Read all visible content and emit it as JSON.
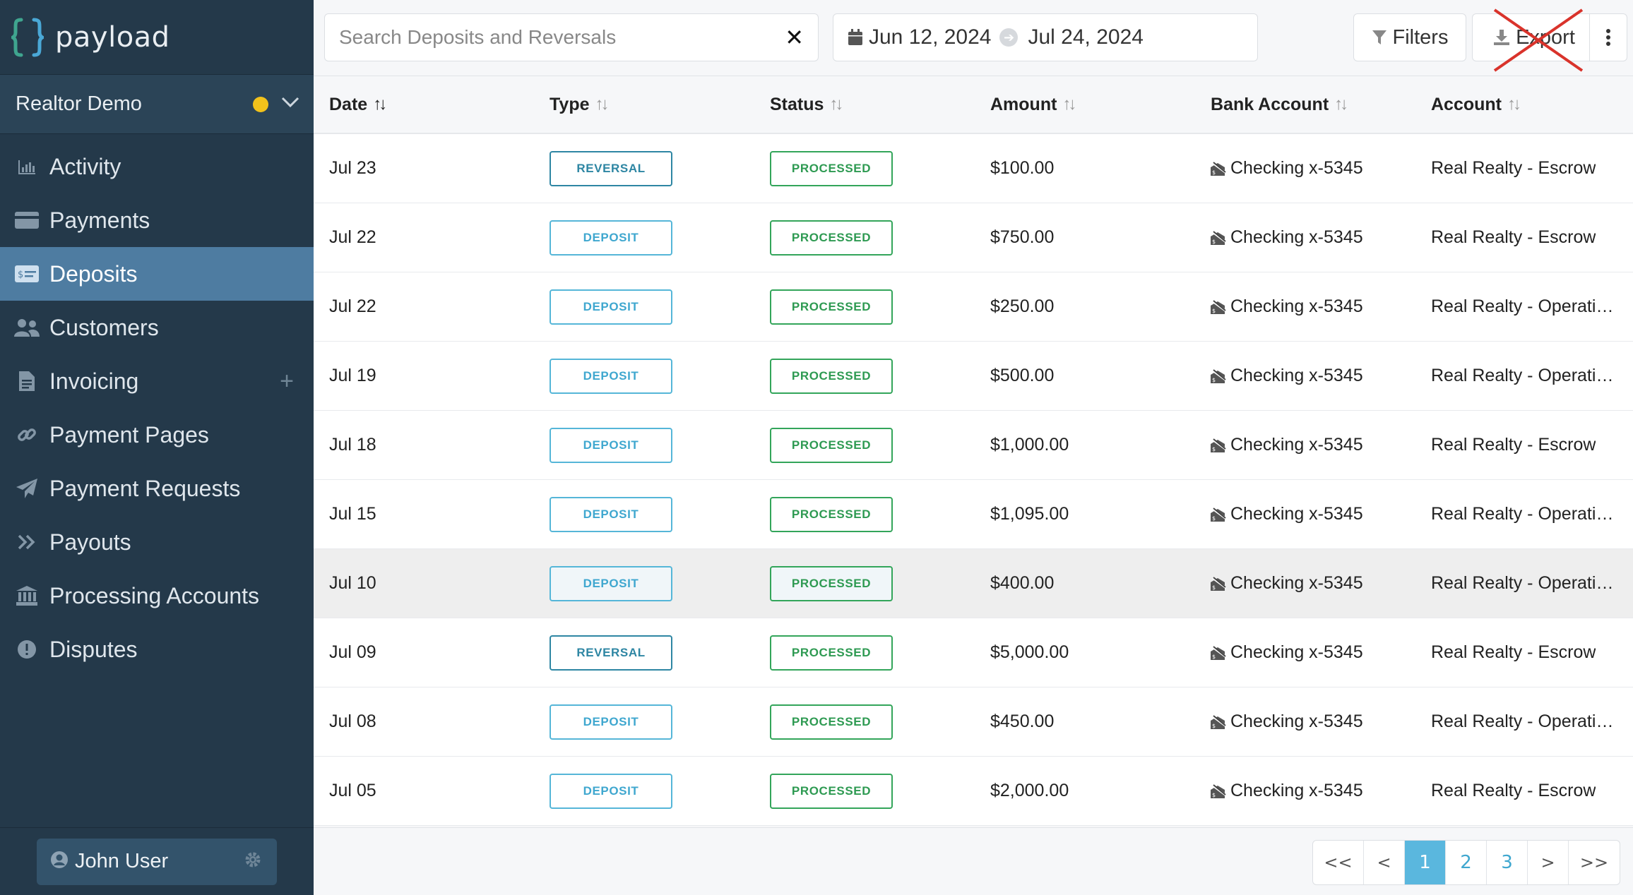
{
  "app": {
    "name": "payload"
  },
  "org": {
    "name": "Realtor Demo",
    "status_color": "#f2c21b"
  },
  "nav": [
    {
      "key": "activity",
      "label": "Activity",
      "icon": "bar-chart-icon"
    },
    {
      "key": "payments",
      "label": "Payments",
      "icon": "credit-card-icon"
    },
    {
      "key": "deposits",
      "label": "Deposits",
      "icon": "bank-note-icon",
      "active": true
    },
    {
      "key": "customers",
      "label": "Customers",
      "icon": "users-icon"
    },
    {
      "key": "invoicing",
      "label": "Invoicing",
      "icon": "document-icon",
      "has_plus": true
    },
    {
      "key": "payment-pages",
      "label": "Payment Pages",
      "icon": "link-icon"
    },
    {
      "key": "payment-requests",
      "label": "Payment Requests",
      "icon": "paper-plane-icon"
    },
    {
      "key": "payouts",
      "label": "Payouts",
      "icon": "double-chevron-icon"
    },
    {
      "key": "processing-accounts",
      "label": "Processing Accounts",
      "icon": "bank-building-icon"
    },
    {
      "key": "disputes",
      "label": "Disputes",
      "icon": "alert-icon"
    }
  ],
  "user": {
    "name": "John User"
  },
  "search": {
    "placeholder": "Search Deposits and Reversals",
    "value": ""
  },
  "daterange": {
    "start": "Jun 12, 2024",
    "end": "Jul 24, 2024"
  },
  "toolbar": {
    "filters_label": "Filters",
    "export_label": "Export"
  },
  "table": {
    "headers": {
      "date": "Date",
      "type": "Type",
      "status": "Status",
      "amount": "Amount",
      "bank": "Bank Account",
      "account": "Account"
    },
    "rows": [
      {
        "date": "Jul 23",
        "type": "REVERSAL",
        "status": "PROCESSED",
        "amount": "$100.00",
        "bank": "Checking x-5345",
        "account": "Real Realty - Escrow"
      },
      {
        "date": "Jul 22",
        "type": "DEPOSIT",
        "status": "PROCESSED",
        "amount": "$750.00",
        "bank": "Checking x-5345",
        "account": "Real Realty - Escrow"
      },
      {
        "date": "Jul 22",
        "type": "DEPOSIT",
        "status": "PROCESSED",
        "amount": "$250.00",
        "bank": "Checking x-5345",
        "account": "Real Realty - Operatin..."
      },
      {
        "date": "Jul 19",
        "type": "DEPOSIT",
        "status": "PROCESSED",
        "amount": "$500.00",
        "bank": "Checking x-5345",
        "account": "Real Realty - Operatin..."
      },
      {
        "date": "Jul 18",
        "type": "DEPOSIT",
        "status": "PROCESSED",
        "amount": "$1,000.00",
        "bank": "Checking x-5345",
        "account": "Real Realty - Escrow"
      },
      {
        "date": "Jul 15",
        "type": "DEPOSIT",
        "status": "PROCESSED",
        "amount": "$1,095.00",
        "bank": "Checking x-5345",
        "account": "Real Realty - Operatin..."
      },
      {
        "date": "Jul 10",
        "type": "DEPOSIT",
        "status": "PROCESSED",
        "amount": "$400.00",
        "bank": "Checking x-5345",
        "account": "Real Realty - Operatin...",
        "hover": true
      },
      {
        "date": "Jul 09",
        "type": "REVERSAL",
        "status": "PROCESSED",
        "amount": "$5,000.00",
        "bank": "Checking x-5345",
        "account": "Real Realty - Escrow"
      },
      {
        "date": "Jul 08",
        "type": "DEPOSIT",
        "status": "PROCESSED",
        "amount": "$450.00",
        "bank": "Checking x-5345",
        "account": "Real Realty - Operatin..."
      },
      {
        "date": "Jul 05",
        "type": "DEPOSIT",
        "status": "PROCESSED",
        "amount": "$2,000.00",
        "bank": "Checking x-5345",
        "account": "Real Realty - Escrow"
      }
    ]
  },
  "pagination": {
    "first": "<<",
    "prev": "<",
    "next": ">",
    "last": ">>",
    "pages": [
      "1",
      "2",
      "3"
    ],
    "current": "1"
  },
  "colors": {
    "sidebar": "#24394a",
    "active_nav": "#4e7ca1",
    "reversal": "#2e86a3",
    "deposit": "#55b6d8",
    "processed": "#33a55a",
    "export_cross": "#d9332b"
  }
}
